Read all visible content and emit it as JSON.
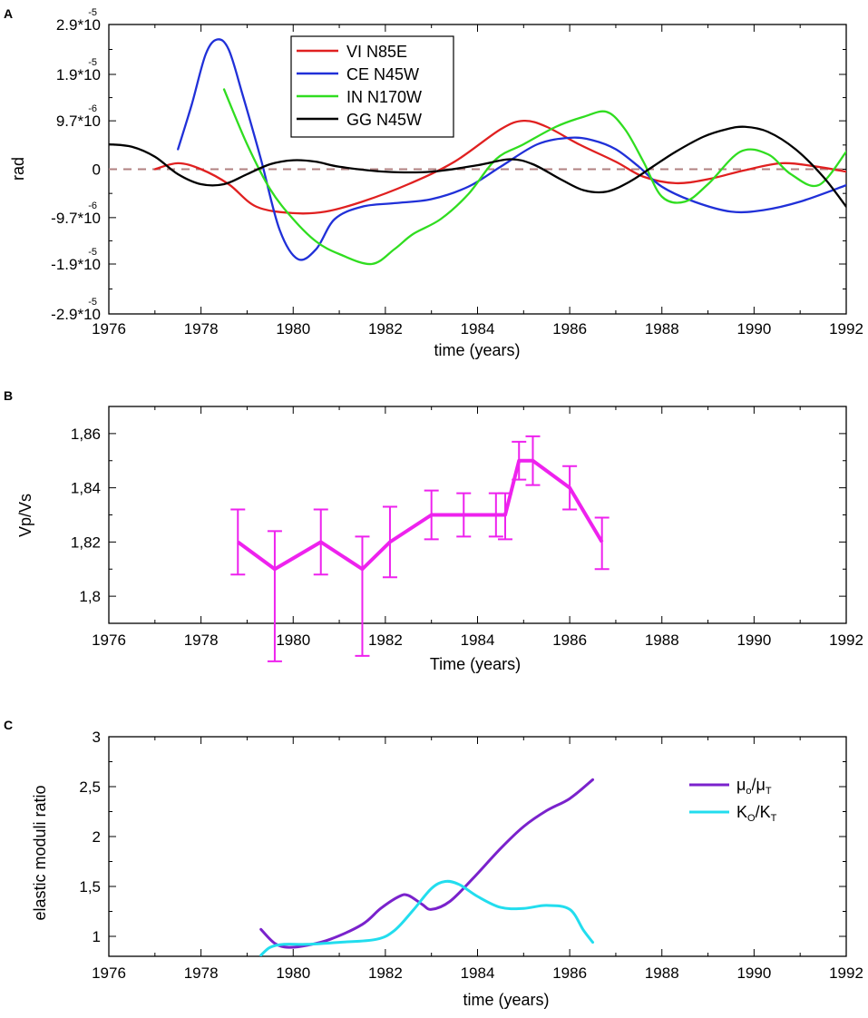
{
  "chart_data": [
    {
      "panel": "A",
      "type": "line",
      "xlabel": "time (years)",
      "ylabel": "rad",
      "xlim": [
        1976,
        1992
      ],
      "ylim": [
        -2.9e-05,
        2.9e-05
      ],
      "x_ticks": [
        1976,
        1978,
        1980,
        1982,
        1984,
        1986,
        1988,
        1990,
        1992
      ],
      "x_tick_labels": [
        "1976",
        "1978",
        "1980",
        "1982",
        "1984",
        "1986",
        "1988",
        "1990",
        "1992"
      ],
      "y_ticks": [
        {
          "value": 2.9e-05,
          "mantissa": "2.9*10",
          "exp": "-5"
        },
        {
          "value": 1.9e-05,
          "mantissa": "1.9*10",
          "exp": "-5"
        },
        {
          "value": 9.7e-06,
          "mantissa": "9.7*10",
          "exp": "-6"
        },
        {
          "value": 0,
          "mantissa": "0",
          "exp": ""
        },
        {
          "value": -9.7e-06,
          "mantissa": "-9.7*10",
          "exp": "-6"
        },
        {
          "value": -1.9e-05,
          "mantissa": "-1.9*10",
          "exp": "-5"
        },
        {
          "value": -2.9e-05,
          "mantissa": "-2.9*10",
          "exp": "-5"
        }
      ],
      "zero_line": {
        "value": 0,
        "color": "#b08080",
        "style": "dashed"
      },
      "legend": "top-center",
      "series": [
        {
          "name": "VI  N85E",
          "color": "#e02020",
          "x": [
            1977.0,
            1977.5,
            1978.0,
            1978.6,
            1979.2,
            1980.0,
            1980.7,
            1981.5,
            1982.5,
            1983.5,
            1984.5,
            1985.0,
            1985.5,
            1986.2,
            1987.0,
            1987.6,
            1988.3,
            1989.0,
            1989.8,
            1990.6,
            1991.3,
            1992.0
          ],
          "y": [
            0,
            1.2e-06,
            0,
            -3e-06,
            -7.5e-06,
            -8.8e-06,
            -8.5e-06,
            -6.5e-06,
            -3e-06,
            1.5e-06,
            8e-06,
            9.7e-06,
            8.5e-06,
            5e-06,
            1.5e-06,
            -1.5e-06,
            -2.8e-06,
            -2e-06,
            -2e-07,
            1.2e-06,
            6e-07,
            -5e-07
          ]
        },
        {
          "name": "CE  N45W",
          "color": "#2030d8",
          "x": [
            1977.5,
            1977.8,
            1978.1,
            1978.35,
            1978.6,
            1978.9,
            1979.3,
            1979.7,
            1980.1,
            1980.5,
            1980.9,
            1981.5,
            1982.2,
            1983.0,
            1983.8,
            1984.5,
            1985.3,
            1986.0,
            1986.5,
            1987.0,
            1987.5,
            1988.0,
            1988.7,
            1989.5,
            1990.2,
            1991.0,
            1992.0
          ],
          "y": [
            4e-06,
            1.3e-05,
            2.3e-05,
            2.6e-05,
            2.4e-05,
            1.5e-05,
            2e-06,
            -1.2e-05,
            -1.8e-05,
            -1.6e-05,
            -1e-05,
            -7.5e-06,
            -6.8e-06,
            -6e-06,
            -3.5e-06,
            5e-07,
            5e-06,
            6.3e-06,
            5.8e-06,
            4e-06,
            5e-07,
            -3.5e-06,
            -6.5e-06,
            -8.5e-06,
            -8.2e-06,
            -6.5e-06,
            -3.2e-06
          ]
        },
        {
          "name": "IN  N170W",
          "color": "#30dd20",
          "x": [
            1978.5,
            1979.0,
            1979.5,
            1980.0,
            1980.5,
            1981.0,
            1981.7,
            1982.2,
            1982.6,
            1983.2,
            1983.8,
            1984.4,
            1985.0,
            1985.7,
            1986.3,
            1986.8,
            1987.2,
            1987.6,
            1988.0,
            1988.5,
            1989.0,
            1989.7,
            1990.3,
            1990.8,
            1991.4,
            1992.0
          ],
          "y": [
            1.6e-05,
            5e-06,
            -4e-06,
            -1e-05,
            -1.45e-05,
            -1.7e-05,
            -1.9e-05,
            -1.6e-05,
            -1.3e-05,
            -1e-05,
            -5e-06,
            2e-06,
            5e-06,
            8.5e-06,
            1.05e-05,
            1.15e-05,
            8e-06,
            1.5e-06,
            -5.5e-06,
            -6.5e-06,
            -3e-06,
            3.5e-06,
            3e-06,
            -1e-06,
            -3.2e-06,
            3.5e-06
          ]
        },
        {
          "name": "GG  N45W",
          "color": "#000000",
          "x": [
            1976.0,
            1976.5,
            1977.0,
            1977.5,
            1978.0,
            1978.5,
            1979.0,
            1979.5,
            1980.0,
            1980.5,
            1981.0,
            1982.0,
            1983.0,
            1984.0,
            1984.7,
            1985.2,
            1985.8,
            1986.3,
            1986.8,
            1987.3,
            1987.8,
            1988.3,
            1988.9,
            1989.4,
            1989.8,
            1990.3,
            1990.9,
            1991.5,
            1992.0
          ],
          "y": [
            5e-06,
            4.5e-06,
            2.5e-06,
            -1e-06,
            -3e-06,
            -3e-06,
            -1e-06,
            1e-06,
            1.8e-06,
            1.5e-06,
            5e-07,
            -5e-07,
            -5e-07,
            8e-07,
            2e-06,
            1e-06,
            -2e-06,
            -4.2e-06,
            -4.5e-06,
            -2.5e-06,
            5e-07,
            3.5e-06,
            6.5e-06,
            8e-06,
            8.5e-06,
            7.5e-06,
            4e-06,
            -1.5e-06,
            -7.5e-06
          ]
        }
      ]
    },
    {
      "panel": "B",
      "type": "line",
      "xlabel": "Time (years)",
      "ylabel": "Vp/Vs",
      "xlim": [
        1976,
        1992
      ],
      "ylim": [
        1.79,
        1.87
      ],
      "x_ticks": [
        1976,
        1978,
        1980,
        1982,
        1984,
        1986,
        1988,
        1990,
        1992
      ],
      "x_tick_labels": [
        "1976",
        "1978",
        "1980",
        "1982",
        "1984",
        "1986",
        "1988",
        "1990",
        "1992"
      ],
      "y_ticks": [
        1.8,
        1.82,
        1.84,
        1.86
      ],
      "y_tick_labels": [
        "1,8",
        "1,82",
        "1,84",
        "1,86"
      ],
      "series": [
        {
          "name": "Vp/Vs",
          "color": "#ee22ee",
          "x": [
            1978.8,
            1979.6,
            1980.6,
            1981.5,
            1982.1,
            1983.0,
            1983.7,
            1984.4,
            1984.6,
            1984.9,
            1985.2,
            1986.0,
            1986.7
          ],
          "y": [
            1.82,
            1.81,
            1.82,
            1.81,
            1.82,
            1.83,
            1.83,
            1.83,
            1.83,
            1.85,
            1.85,
            1.84,
            1.82
          ],
          "err_low": [
            1.808,
            1.776,
            1.808,
            1.778,
            1.807,
            1.821,
            1.822,
            1.822,
            1.821,
            1.843,
            1.841,
            1.832,
            1.81
          ],
          "err_high": [
            1.832,
            1.824,
            1.832,
            1.822,
            1.833,
            1.839,
            1.838,
            1.838,
            1.838,
            1.857,
            1.859,
            1.848,
            1.829
          ]
        }
      ]
    },
    {
      "panel": "C",
      "type": "line",
      "xlabel": "time (years)",
      "ylabel": "elastic moduli ratio",
      "xlim": [
        1976,
        1992
      ],
      "ylim": [
        0.8,
        3.0
      ],
      "x_ticks": [
        1976,
        1978,
        1980,
        1982,
        1984,
        1986,
        1988,
        1990,
        1992
      ],
      "x_tick_labels": [
        "1976",
        "1978",
        "1980",
        "1982",
        "1984",
        "1986",
        "1988",
        "1990",
        "1992"
      ],
      "y_ticks": [
        1,
        1.5,
        2,
        2.5,
        3
      ],
      "y_tick_labels": [
        "1",
        "1,5",
        "2",
        "2,5",
        "3"
      ],
      "legend": "right",
      "series": [
        {
          "name": "μo/μT",
          "label_main": "μ",
          "label_sub1": "o",
          "label_mid": "/μ",
          "label_sub2": "T",
          "color": "#7a22cc",
          "x": [
            1979.3,
            1979.6,
            1979.9,
            1980.3,
            1980.8,
            1981.5,
            1981.9,
            1982.3,
            1982.5,
            1982.8,
            1983.0,
            1983.4,
            1983.9,
            1984.5,
            1985.0,
            1985.5,
            1986.0,
            1986.5
          ],
          "y": [
            1.07,
            0.93,
            0.89,
            0.91,
            0.97,
            1.12,
            1.28,
            1.4,
            1.41,
            1.32,
            1.27,
            1.35,
            1.58,
            1.88,
            2.1,
            2.26,
            2.38,
            2.57
          ]
        },
        {
          "name": "KO/KT",
          "label_main": "K",
          "label_sub1": "O",
          "label_mid": "/K",
          "label_sub2": "T",
          "color": "#22ddee",
          "x": [
            1979.3,
            1979.5,
            1979.8,
            1980.3,
            1981.0,
            1981.8,
            1982.2,
            1982.6,
            1983.0,
            1983.3,
            1983.6,
            1984.0,
            1984.5,
            1985.0,
            1985.5,
            1986.0,
            1986.3,
            1986.5
          ],
          "y": [
            0.81,
            0.89,
            0.92,
            0.92,
            0.94,
            0.97,
            1.06,
            1.26,
            1.48,
            1.55,
            1.52,
            1.4,
            1.29,
            1.28,
            1.31,
            1.27,
            1.06,
            0.94
          ]
        }
      ]
    }
  ]
}
